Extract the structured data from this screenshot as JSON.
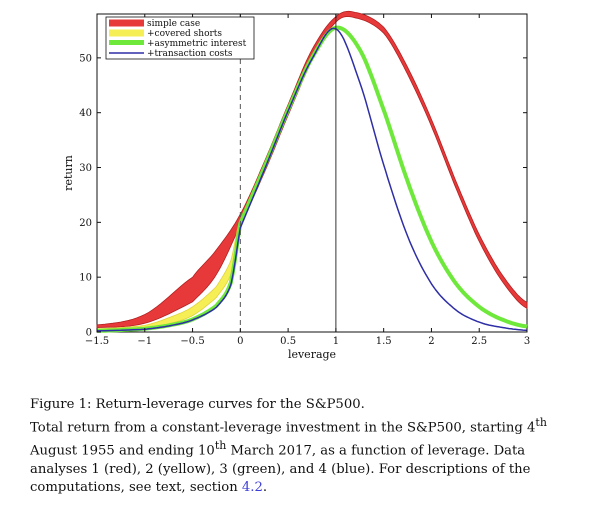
{
  "chart_data": {
    "type": "line",
    "xlabel": "leverage",
    "ylabel": "return",
    "xlim": [
      -1.5,
      3
    ],
    "ylim": [
      0,
      58
    ],
    "xticks": [
      -1.5,
      -1,
      -0.5,
      0,
      0.5,
      1,
      1.5,
      2,
      2.5,
      3
    ],
    "xtick_labels": [
      "−1.5",
      "−1",
      "−0.5",
      "0",
      "0.5",
      "1",
      "1.5",
      "2",
      "2.5",
      "3"
    ],
    "yticks": [
      0,
      10,
      20,
      30,
      40,
      50
    ],
    "ytick_labels": [
      "0",
      "10",
      "20",
      "30",
      "40",
      "50"
    ],
    "vlines": [
      {
        "x": 0,
        "style": "dashed"
      },
      {
        "x": 1,
        "style": "solid"
      }
    ],
    "legend_position": "top-left",
    "series": [
      {
        "name": "simple case",
        "color": "#e8393a",
        "outline": "#b32020",
        "x": [
          -1.5,
          -1,
          -0.5,
          -0.25,
          0,
          0.25,
          0.5,
          0.75,
          1,
          1.2,
          1.5,
          1.75,
          2,
          2.25,
          2.5,
          2.75,
          3
        ],
        "lower": [
          0.8,
          1.6,
          5.5,
          10.5,
          19.5,
          29,
          39.5,
          49.5,
          56.5,
          57.3,
          54.5,
          47,
          37.5,
          26.5,
          16.5,
          9,
          4.3
        ],
        "upper": [
          1.3,
          3.2,
          10,
          15,
          21.5,
          31,
          41.5,
          51.5,
          57.5,
          58.3,
          55.6,
          48.3,
          38.8,
          27.8,
          17.8,
          10.2,
          5.4
        ]
      },
      {
        "name": "+covered shorts",
        "color": "#f5ee55",
        "outline": "#e0d23a",
        "x": [
          -1.5,
          -1,
          -0.75,
          -0.5,
          -0.25,
          -0.1,
          0
        ],
        "lower": [
          0.4,
          0.8,
          1.5,
          3,
          6.3,
          10.5,
          19.5
        ],
        "upper": [
          0.6,
          1.2,
          2.6,
          4.6,
          8.3,
          13,
          20.5
        ]
      },
      {
        "name": "+asymmetric interest",
        "color": "#6ee83a",
        "x": [
          -1.5,
          -1,
          -0.75,
          -0.5,
          -0.25,
          -0.1,
          0,
          0.25,
          0.5,
          0.75,
          1,
          1.25,
          1.5,
          1.75,
          2,
          2.25,
          2.5,
          2.75,
          3
        ],
        "values": [
          0.2,
          0.6,
          1.2,
          2.3,
          4.8,
          9,
          19.8,
          30,
          40.5,
          50,
          55.5,
          51.5,
          40.5,
          27.5,
          16.5,
          9,
          4.6,
          2.2,
          1
        ]
      },
      {
        "name": "+transaction costs",
        "color": "#2e2ea6",
        "x": [
          -1.5,
          -1,
          -0.75,
          -0.5,
          -0.25,
          -0.1,
          0,
          0.25,
          0.5,
          0.75,
          1,
          1.25,
          1.5,
          1.75,
          2,
          2.25,
          2.5,
          2.75,
          3
        ],
        "values": [
          0.2,
          0.5,
          1.1,
          2.2,
          4.5,
          8.6,
          19,
          29.5,
          40.3,
          49.8,
          55.3,
          45.5,
          30.5,
          17.5,
          8.8,
          4.1,
          1.8,
          0.8,
          0.3
        ]
      }
    ]
  },
  "caption": {
    "line1": "Figure 1:   Return-leverage curves for the S&P500.",
    "body_a": "Total return from a constant-leverage investment in the S&P500, starting 4",
    "sup_a": "th",
    "body_b": " August 1955 and ending 10",
    "sup_b": "th",
    "body_c": " March 2017, as a function of leverage.  Data analyses 1 (red), 2 (yellow), 3 (green), and 4 (blue).  For descriptions of the computations, see text, section ",
    "section_ref": "4.2",
    "body_end": "."
  }
}
